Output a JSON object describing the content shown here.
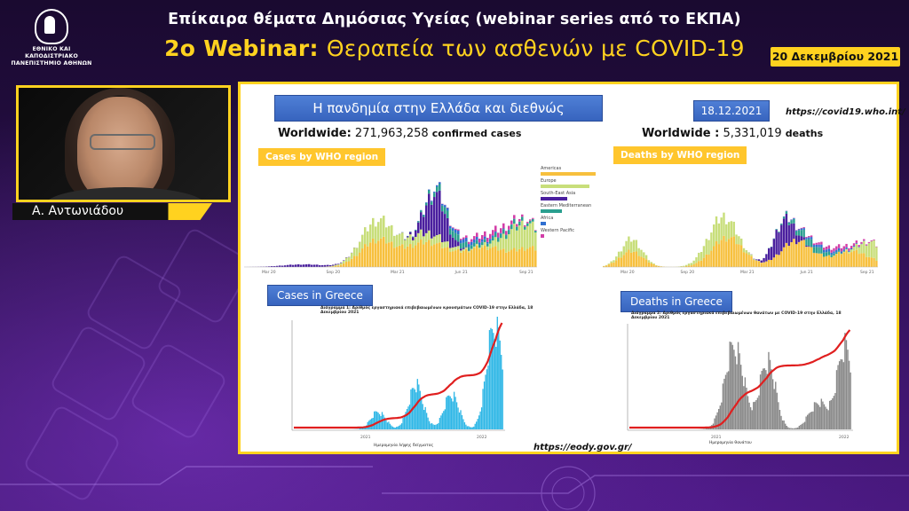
{
  "header": {
    "university_line1": "ΕΘΝΙΚΟ ΚΑΙ ΚΑΠΟΔΙΣΤΡΙΑΚΟ",
    "university_line2": "ΠΑΝΕΠΙΣΤΗΜΙΟ ΑΘΗΝΩΝ",
    "series_title": "Επίκαιρα θέματα Δημόσιας Υγείας (webinar series από το ΕΚΠΑ)",
    "webinar_number": "2ο Webinar:",
    "webinar_topic": "Θεραπεία των ασθενών με COVID-19",
    "date": "20 Δεκεμβρίου 2021"
  },
  "speaker": {
    "name": "Α. Αντωνιάδου"
  },
  "slide": {
    "heading": "Η πανδημία στην Ελλάδα και διεθνώς",
    "date": "18.12.2021",
    "who_url": "https://covid19.who.int/",
    "worldwide_cases_prefix": "Worldwide:",
    "worldwide_cases_value": "271,963,258",
    "worldwide_cases_suffix": "confirmed cases",
    "worldwide_deaths_prefix": "Worldwide :",
    "worldwide_deaths_value": "5,331,019",
    "worldwide_deaths_suffix": "deaths",
    "cases_region_label": "Cases by WHO region",
    "deaths_region_label": "Deaths by WHO region",
    "cases_greece_label": "Cases in Greece",
    "deaths_greece_label": "Deaths in Greece",
    "eody_url": "https://eody.gov.gr/",
    "greece_cases_chart_title": "Διάγραμμα 1: Αριθμός εργαστηριακά επιβεβαιωμένων κρουσμάτων COVID-19 στην Ελλάδα, 18 Δεκεμβρίου 2021",
    "greece_deaths_chart_title": "Διάγραμμα 2: Αριθμός εργαστηριακά επιβεβαιωμένων θανάτων με COVID-19 στην Ελλάδα, 18 Δεκεμβρίου 2021",
    "greece_cases_xlabel": "Ημερομηνία λήψης δείγματος",
    "greece_deaths_xlabel": "Ημερομηνία θανάτου",
    "legend": [
      {
        "name": "Americas",
        "color": "#f7c03d"
      },
      {
        "name": "Europe",
        "color": "#c8de7a"
      },
      {
        "name": "South-East Asia",
        "color": "#4a1f9e"
      },
      {
        "name": "Eastern Mediterranean",
        "color": "#2a9f8f"
      },
      {
        "name": "Africa",
        "color": "#2f6fd0"
      },
      {
        "name": "Western Pacific",
        "color": "#d23ea8"
      }
    ],
    "who_x_ticks": [
      "Mar 20",
      "Sep 20",
      "Mar 21",
      "Jun 21",
      "Sep 21"
    ],
    "greece_x_ticks": [
      "2021",
      "2022"
    ]
  }
}
